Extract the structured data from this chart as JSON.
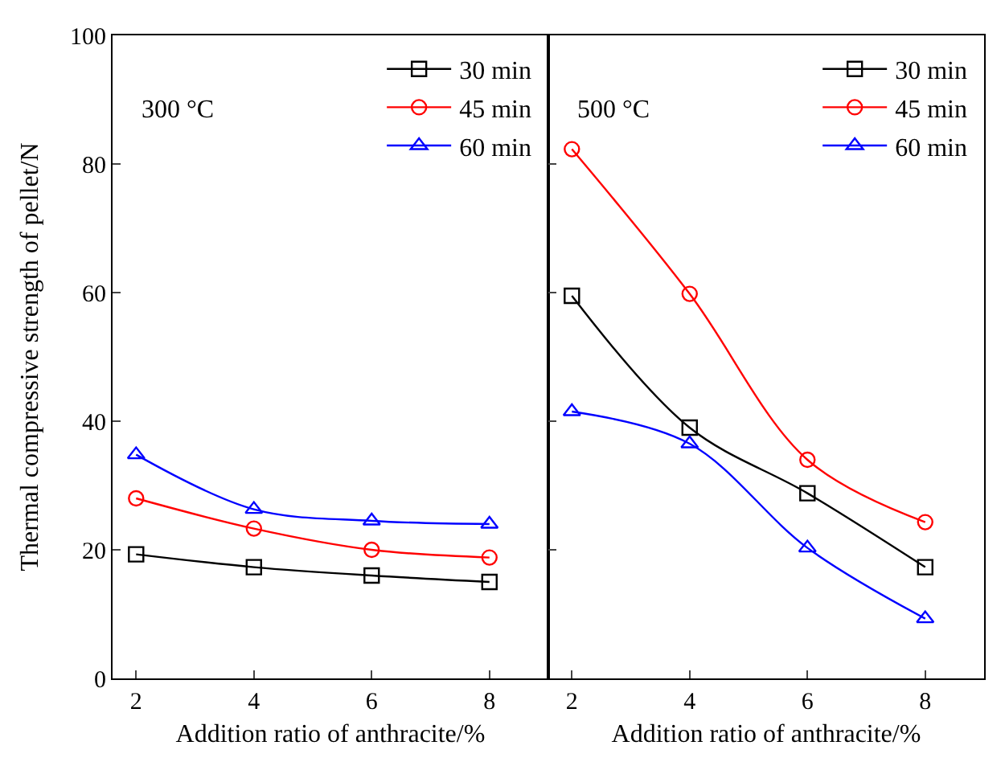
{
  "chart_data": [
    {
      "type": "line",
      "ylabel": "Thermal compressive strength of pellet/N",
      "xlabel": "Addition ratio of anthracite/%",
      "x": [
        2,
        4,
        6,
        8
      ],
      "xlim": [
        1.6,
        9
      ],
      "xticks": [
        2,
        4,
        6,
        8
      ],
      "ylim": [
        0,
        100
      ],
      "yticks": [
        0,
        20,
        40,
        60,
        80,
        100
      ],
      "legend": "top right",
      "annotations": [
        "300 °C"
      ],
      "series": [
        {
          "name": "30 min",
          "color": "#000000",
          "marker": "square",
          "values": [
            19.3,
            17.3,
            16,
            15
          ]
        },
        {
          "name": "45 min",
          "color": "#ff0000",
          "marker": "circle",
          "values": [
            28,
            23.3,
            20,
            18.8
          ]
        },
        {
          "name": "60 min",
          "color": "#0000ff",
          "marker": "triangle",
          "values": [
            34.8,
            26.3,
            24.5,
            24
          ]
        }
      ]
    },
    {
      "type": "line",
      "xlabel": "Addition ratio of anthracite/%",
      "x": [
        2,
        4,
        6,
        8
      ],
      "xlim": [
        1.6,
        9
      ],
      "xticks": [
        2,
        4,
        6,
        8
      ],
      "ylim": [
        0,
        100
      ],
      "tick_labels": "x",
      "legend": "top right",
      "annotations": [
        "500 °C"
      ],
      "series": [
        {
          "name": "30 min",
          "color": "#000000",
          "marker": "square",
          "values": [
            59.5,
            39,
            28.8,
            17.3
          ]
        },
        {
          "name": "45 min",
          "color": "#ff0000",
          "marker": "circle",
          "values": [
            82.3,
            59.8,
            34,
            24.3
          ]
        },
        {
          "name": "60 min",
          "color": "#0000ff",
          "marker": "triangle",
          "values": [
            41.5,
            36.5,
            20.3,
            9.3
          ]
        }
      ]
    }
  ]
}
